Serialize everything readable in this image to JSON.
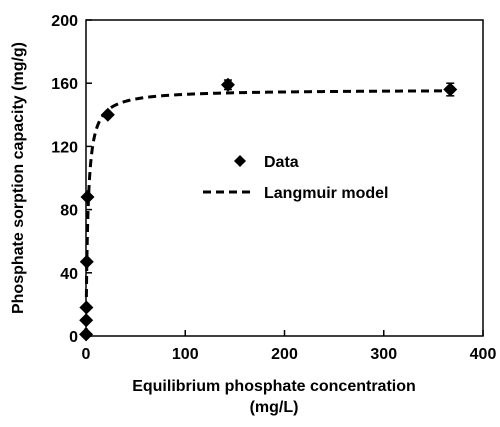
{
  "chart_data": {
    "type": "scatter",
    "xlabel_line1": "Equilibrium phosphate concentration",
    "xlabel_line2": "(mg/L)",
    "ylabel": "Phosphate sorption capacity (mg/g)",
    "xlim": [
      0,
      400
    ],
    "ylim": [
      0,
      200
    ],
    "x_ticks": [
      0,
      100,
      200,
      300,
      400
    ],
    "y_ticks": [
      0,
      40,
      80,
      120,
      160,
      200
    ],
    "x_tick_labels": [
      "0",
      "100",
      "200",
      "300",
      "400"
    ],
    "y_tick_labels": [
      "0",
      "40",
      "80",
      "120",
      "160",
      "200"
    ],
    "grid": false,
    "legend_position": "center-right",
    "series": [
      {
        "name": "Data",
        "kind": "markers",
        "marker": "diamond",
        "color": "#000000",
        "x": [
          0.1,
          0.2,
          0.4,
          0.8,
          1.5,
          22,
          143,
          367
        ],
        "y": [
          1,
          10,
          18,
          47,
          88,
          140,
          159,
          156
        ],
        "y_error": [
          0,
          0,
          0,
          0,
          0,
          0,
          3,
          4
        ]
      },
      {
        "name": "Langmuir model",
        "kind": "line",
        "style": "dashed",
        "color": "#000000",
        "qmax": 156,
        "KL": 0.5
      }
    ]
  }
}
